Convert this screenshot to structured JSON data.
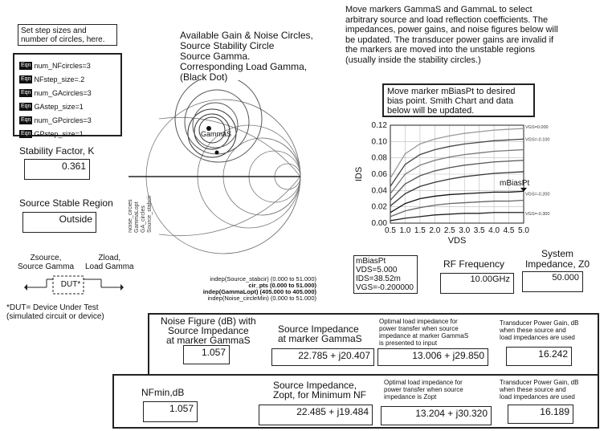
{
  "step_note": "Set step sizes and number of circles, here.",
  "equations": {
    "tag": "Eqn",
    "items": [
      "num_NFcircles=3",
      "NFstep_size=.2",
      "num_GAcircles=3",
      "GAstep_size=1",
      "num_GPcircles=3",
      "GPstep_size=1"
    ]
  },
  "stability": {
    "label": "Stability Factor, K",
    "value": "0.361"
  },
  "source_region": {
    "label": "Source Stable Region",
    "value": "Outside"
  },
  "dut": {
    "zsource_label": "Zsource,\nSource Gamma",
    "zload_label": "Zload,\nLoad Gamma",
    "box_label": "DUT*",
    "footnote": "*DUT= Device Under Test\n(simulated circuit or device)"
  },
  "smith": {
    "title": "Available Gain & Noise Circles,\nSource Stability Circle\nSource Gamma.\nCorresponding Load Gamma,\n  (Black Dot)",
    "marker_label": "GammaS",
    "side_labels": [
      "Noise_circleMin",
      "Noise_circles",
      "GammaLopt",
      "GA_circles",
      "Source_stabcir"
    ],
    "legend": [
      "indep(Source_stabcir) (0.000 to 51.000)",
      "cir_pts (0.000 to 51.000)",
      "indep(GammaLopt) (405.000 to 405.000)",
      "indep(Noise_circleMin) (0.000 to 51.000)"
    ]
  },
  "instructions": "Move markers GammaS and GammaL to select arbitrary source and load reflection coefficients. The impedances, power gains, and noise figures below will be updated.  The transducer power gains are invalid if the markers are moved into the unstable regions (usually inside the stability circles.)",
  "bias_note": "Move marker mBiasPt to desired bias point.  Smith Chart and data below will be updated.",
  "iv_chart": {
    "xlabel": "VDS",
    "ylabel": "IDS",
    "x_ticks": [
      "0.5",
      "1.0",
      "1.5",
      "2.0",
      "2.5",
      "3.0",
      "3.5",
      "4.0",
      "4.5",
      "5.0"
    ],
    "y_ticks": [
      "0.00",
      "0.02",
      "0.04",
      "0.06",
      "0.08",
      "0.10",
      "0.12"
    ],
    "curve_labels": [
      "VGS=0.000",
      "VGS=-0.100",
      "VGS=-0.200",
      "VGS=-0.300"
    ],
    "marker_label": "mBiasPt"
  },
  "chart_data": {
    "type": "line",
    "xlabel": "VDS",
    "ylabel": "IDS",
    "xlim": [
      0.5,
      5.0
    ],
    "ylim": [
      0.0,
      0.12
    ],
    "x": [
      0.5,
      1.0,
      1.5,
      2.0,
      2.5,
      3.0,
      3.5,
      4.0,
      4.5,
      5.0
    ],
    "series": [
      {
        "name": "VGS=0.000",
        "values": [
          0.055,
          0.085,
          0.097,
          0.103,
          0.107,
          0.11,
          0.112,
          0.114,
          0.115,
          0.116
        ]
      },
      {
        "name": "",
        "values": [
          0.045,
          0.072,
          0.084,
          0.09,
          0.094,
          0.097,
          0.099,
          0.101,
          0.102,
          0.103
        ]
      },
      {
        "name": "",
        "values": [
          0.036,
          0.06,
          0.071,
          0.077,
          0.081,
          0.084,
          0.086,
          0.088,
          0.089,
          0.09
        ]
      },
      {
        "name": "",
        "values": [
          0.028,
          0.048,
          0.058,
          0.064,
          0.068,
          0.071,
          0.073,
          0.075,
          0.076,
          0.077
        ]
      },
      {
        "name": "VGS=-0.100",
        "values": [
          0.021,
          0.036,
          0.045,
          0.05,
          0.054,
          0.057,
          0.059,
          0.061,
          0.062,
          0.063
        ]
      },
      {
        "name": "VGS=-0.200",
        "values": [
          0.013,
          0.024,
          0.03,
          0.033,
          0.035,
          0.036,
          0.037,
          0.038,
          0.038,
          0.039
        ]
      },
      {
        "name": "",
        "values": [
          0.008,
          0.015,
          0.019,
          0.022,
          0.024,
          0.025,
          0.026,
          0.027,
          0.027,
          0.028
        ]
      },
      {
        "name": "VGS=-0.300",
        "values": [
          0.003,
          0.006,
          0.008,
          0.01,
          0.011,
          0.012,
          0.012,
          0.013,
          0.013,
          0.013
        ]
      }
    ],
    "marker": {
      "x": 5.0,
      "y": 0.0385
    }
  },
  "bias_readout": [
    "mBiasPt",
    "VDS=5.000",
    "IDS=38.52m",
    "VGS=-0.200000"
  ],
  "rf_frequency": {
    "label": "RF Frequency",
    "value": "10.00GHz"
  },
  "system_z": {
    "label": "System\nImpedance, Z0",
    "value": "50.000"
  },
  "row1": {
    "nf_label": "Noise Figure (dB) with\nSource Impedance\nat marker GammaS",
    "nf_value": "1.057",
    "zs_label": "Source Impedance\nat marker GammaS",
    "zs_value": "22.785 + j20.407",
    "zl_label": "Optimal load impedance for\npower transfer when source\nimpedance at marker GammaS\nis presented to input",
    "zl_value": "13.006 + j29.850",
    "gt_label": "Transducer Power Gain, dB\nwhen these source and\nload impedances are used",
    "gt_value": "16.242"
  },
  "row2": {
    "nf_label": "NFmin,dB",
    "nf_value": "1.057",
    "zs_label": "Source Impedance,\nZopt, for Minimum NF",
    "zs_value": "22.485 + j19.484",
    "zl_label": "Optimal load impedance for\npower transfer when source\nimpedance is Zopt",
    "zl_value": "13.204 + j30.320",
    "gt_label": "Transducer Power Gain, dB\nwhen these source and\nload impedances are used",
    "gt_value": "16.189"
  }
}
